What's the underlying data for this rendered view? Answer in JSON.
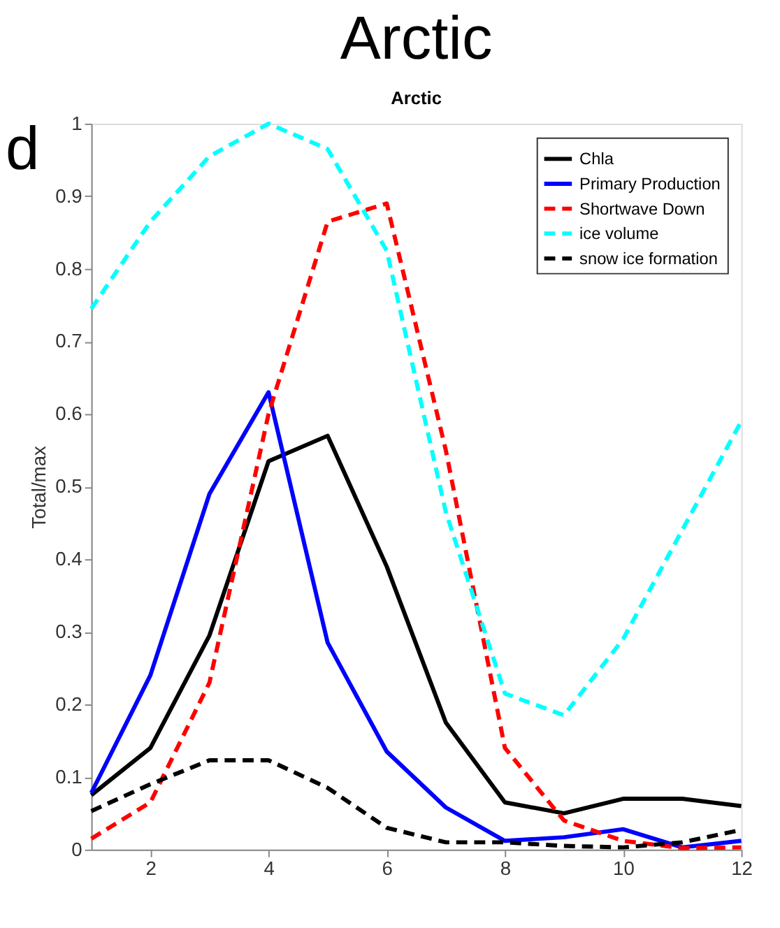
{
  "chart_data": {
    "type": "line",
    "title": "Arctic",
    "subtitle": "Arctic",
    "ylabel": "Total/max",
    "x": [
      1,
      2,
      3,
      4,
      5,
      6,
      7,
      8,
      9,
      10,
      11,
      12
    ],
    "series": [
      {
        "name": "Chla",
        "color": "#000000",
        "line_style": "solid",
        "values": [
          0.075,
          0.14,
          0.295,
          0.535,
          0.57,
          0.39,
          0.175,
          0.065,
          0.05,
          0.07,
          0.07,
          0.06
        ]
      },
      {
        "name": "Primary Production",
        "color": "#0000ff",
        "line_style": "solid",
        "values": [
          0.078,
          0.24,
          0.49,
          0.63,
          0.285,
          0.135,
          0.058,
          0.012,
          0.017,
          0.028,
          0.003,
          0.012
        ]
      },
      {
        "name": "Shortwave Down",
        "color": "#ff0000",
        "line_style": "dashed",
        "values": [
          0.015,
          0.065,
          0.23,
          0.6,
          0.865,
          0.89,
          0.55,
          0.14,
          0.04,
          0.012,
          0.002,
          0.003
        ]
      },
      {
        "name": "ice volume",
        "color": "#00ffff",
        "line_style": "dashed",
        "values": [
          0.745,
          0.865,
          0.955,
          1.0,
          0.965,
          0.825,
          0.465,
          0.215,
          0.185,
          0.29,
          0.44,
          0.59
        ]
      },
      {
        "name": "snow ice formation",
        "color": "#000000",
        "line_style": "dashed",
        "values": [
          0.053,
          0.09,
          0.123,
          0.123,
          0.085,
          0.03,
          0.01,
          0.01,
          0.005,
          0.003,
          0.01,
          0.027
        ]
      }
    ],
    "xlim": [
      1,
      12
    ],
    "xticks": [
      2,
      4,
      6,
      8,
      10,
      12
    ],
    "ylim": [
      0,
      1
    ],
    "yticks": [
      0,
      0.1,
      0.2,
      0.3,
      0.4,
      0.5,
      0.6,
      0.7,
      0.8,
      0.9,
      1
    ],
    "grid": false,
    "legend": "top right",
    "marker": "none",
    "annotations": [
      "d"
    ]
  }
}
